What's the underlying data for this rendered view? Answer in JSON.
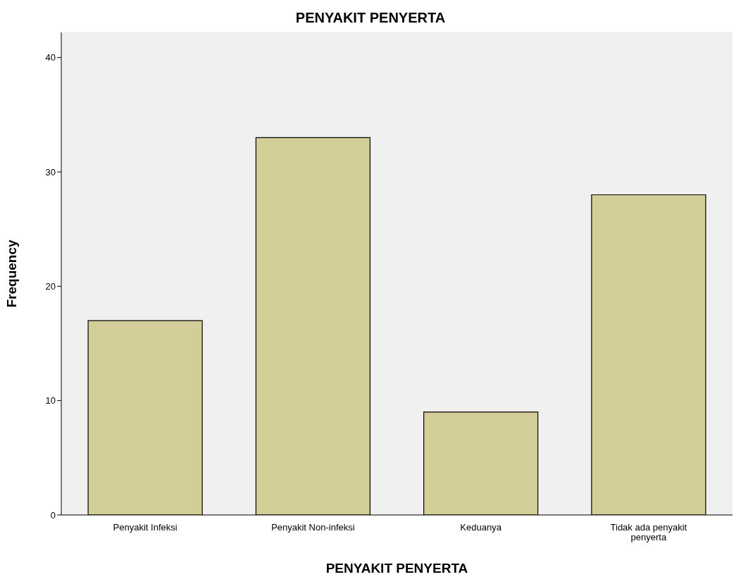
{
  "chart_data": {
    "type": "bar",
    "title": "PENYAKIT PENYERTA",
    "xlabel": "PENYAKIT PENYERTA",
    "ylabel": "Frequency",
    "categories": [
      "Penyakit Infeksi",
      "Penyakit Non-infeksi",
      "Keduanya",
      "Tidak ada penyakit penyerta"
    ],
    "values": [
      17,
      33,
      9,
      28
    ],
    "color": "#d3ce97",
    "ylim": [
      0,
      42.2
    ],
    "yticks": [
      0,
      10,
      20,
      30,
      40
    ],
    "grid": false
  }
}
